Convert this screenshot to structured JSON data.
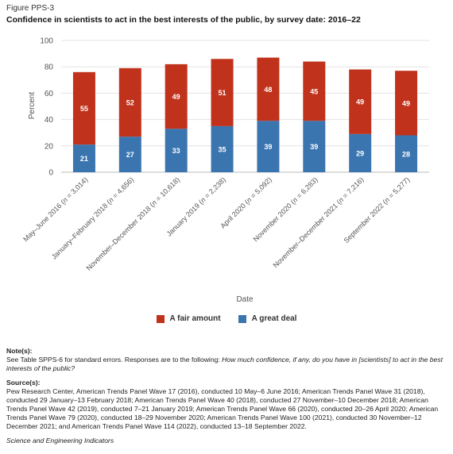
{
  "figure_label": "Figure PPS-3",
  "title": "Confidence in scientists to act in the best interests of the public, by survey date: 2016–22",
  "chart_data": {
    "type": "bar",
    "stacked": true,
    "xlabel": "Date",
    "ylabel": "Percent",
    "ylim": [
      0,
      100
    ],
    "yticks": [
      0,
      20,
      40,
      60,
      80,
      100
    ],
    "grid": true,
    "legend": "bottom",
    "categories": [
      {
        "label": "May–June 2016 (",
        "n": "n",
        "count": " = 3,014)"
      },
      {
        "label": "January–February 2018 (",
        "n": "n",
        "count": " = 4,656)"
      },
      {
        "label": "November–December 2018 (",
        "n": "n",
        "count": " = 10,618)"
      },
      {
        "label": "January 2019 (",
        "n": "n",
        "count": " = 2,238)"
      },
      {
        "label": "April 2020 (",
        "n": "n",
        "count": " = 5,092)"
      },
      {
        "label": "November 2020 (",
        "n": "n",
        "count": " = 6,283)"
      },
      {
        "label": "November–December 2021 (",
        "n": "n",
        "count": " = 7,216)"
      },
      {
        "label": "September 2022 (",
        "n": "n",
        "count": " = 5,277)"
      }
    ],
    "series": [
      {
        "name": "A great deal",
        "color": "#3a75b0",
        "values": [
          21,
          27,
          33,
          35,
          39,
          39,
          29,
          28
        ]
      },
      {
        "name": "A fair amount",
        "color": "#c0321c",
        "values": [
          55,
          52,
          49,
          51,
          48,
          45,
          49,
          49
        ]
      }
    ]
  },
  "legend": {
    "fair_amount": "A fair amount",
    "great_deal": "A great deal",
    "fair_color": "#c0321c",
    "deal_color": "#3a75b0"
  },
  "notes": {
    "header": "Note(s):",
    "text_plain": "See Table SPPS-6 for standard errors. Responses are to the following: ",
    "text_italic": "How much confidence, if any, do you have in [scientists] to act in the best interests of the public?"
  },
  "sources": {
    "header": "Source(s):",
    "text": "Pew Research Center, American Trends Panel Wave 17 (2016), conducted 10 May–6 June 2016; American Trends Panel Wave 31 (2018), conducted 29 January–13 February 2018; American Trends Panel Wave 40 (2018), conducted 27 November–10 December 2018; American Trends Panel Wave 42 (2019), conducted 7–21 January 2019; American Trends Panel Wave 66 (2020), conducted 20–26 April 2020; American Trends Panel Wave 79 (2020), conducted 18–29 November 2020; American Trends Panel Wave 100 (2021), conducted 30 November–12 December 2021; and American Trends Panel Wave 114 (2022), conducted 13–18 September 2022."
  },
  "footer": "Science and Engineering Indicators"
}
